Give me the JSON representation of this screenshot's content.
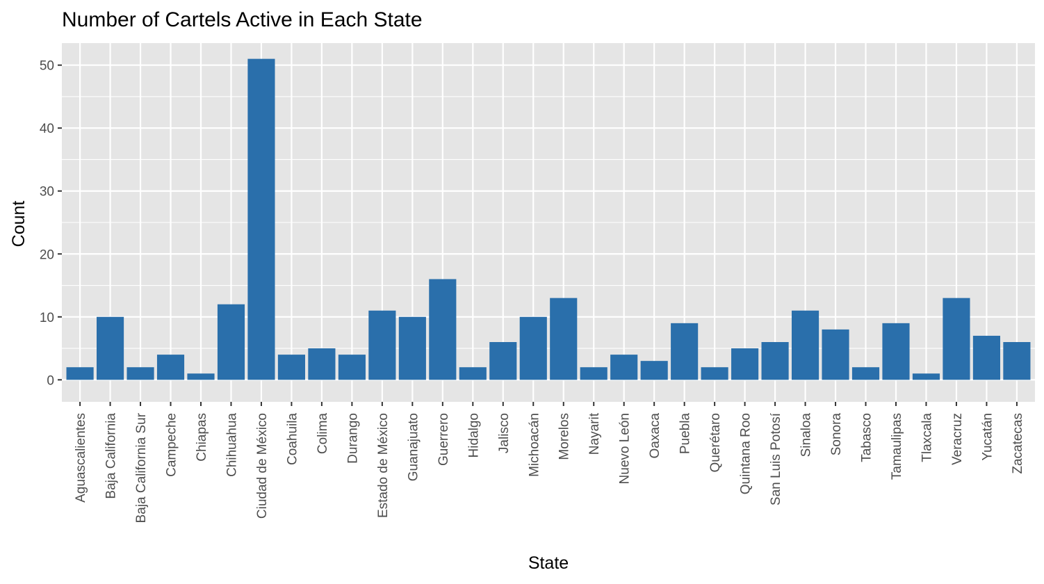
{
  "chart_data": {
    "type": "bar",
    "title": "Number of Cartels Active in Each State",
    "xlabel": "State",
    "ylabel": "Count",
    "ylim": [
      -3.5,
      53.5
    ],
    "yticks": [
      0,
      10,
      20,
      30,
      40,
      50
    ],
    "yticks_labels": [
      "0",
      "10",
      "20",
      "30",
      "40",
      "50"
    ],
    "grid": true,
    "legend": "none",
    "categories": [
      "Aguascalientes",
      "Baja California",
      "Baja California Sur",
      "Campeche",
      "Chiapas",
      "Chihuahua",
      "Ciudad de México",
      "Coahuila",
      "Colima",
      "Durango",
      "Estado de México",
      "Guanajuato",
      "Guerrero",
      "Hidalgo",
      "Jalisco",
      "Michoacán",
      "Morelos",
      "Nayarit",
      "Nuevo León",
      "Oaxaca",
      "Puebla",
      "Querétaro",
      "Quintana Roo",
      "San Luis Potosí",
      "Sinaloa",
      "Sonora",
      "Tabasco",
      "Tamaulipas",
      "Tlaxcala",
      "Veracruz",
      "Yucatán",
      "Zacatecas"
    ],
    "values": [
      2,
      10,
      2,
      4,
      1,
      12,
      51,
      4,
      5,
      4,
      11,
      10,
      16,
      2,
      6,
      10,
      13,
      2,
      4,
      3,
      9,
      2,
      5,
      6,
      11,
      8,
      2,
      9,
      1,
      13,
      7,
      6
    ]
  },
  "colors": {
    "bar": "#2a6fab",
    "panel": "#e5e5e5",
    "grid": "#ffffff",
    "tick": "#333333"
  }
}
